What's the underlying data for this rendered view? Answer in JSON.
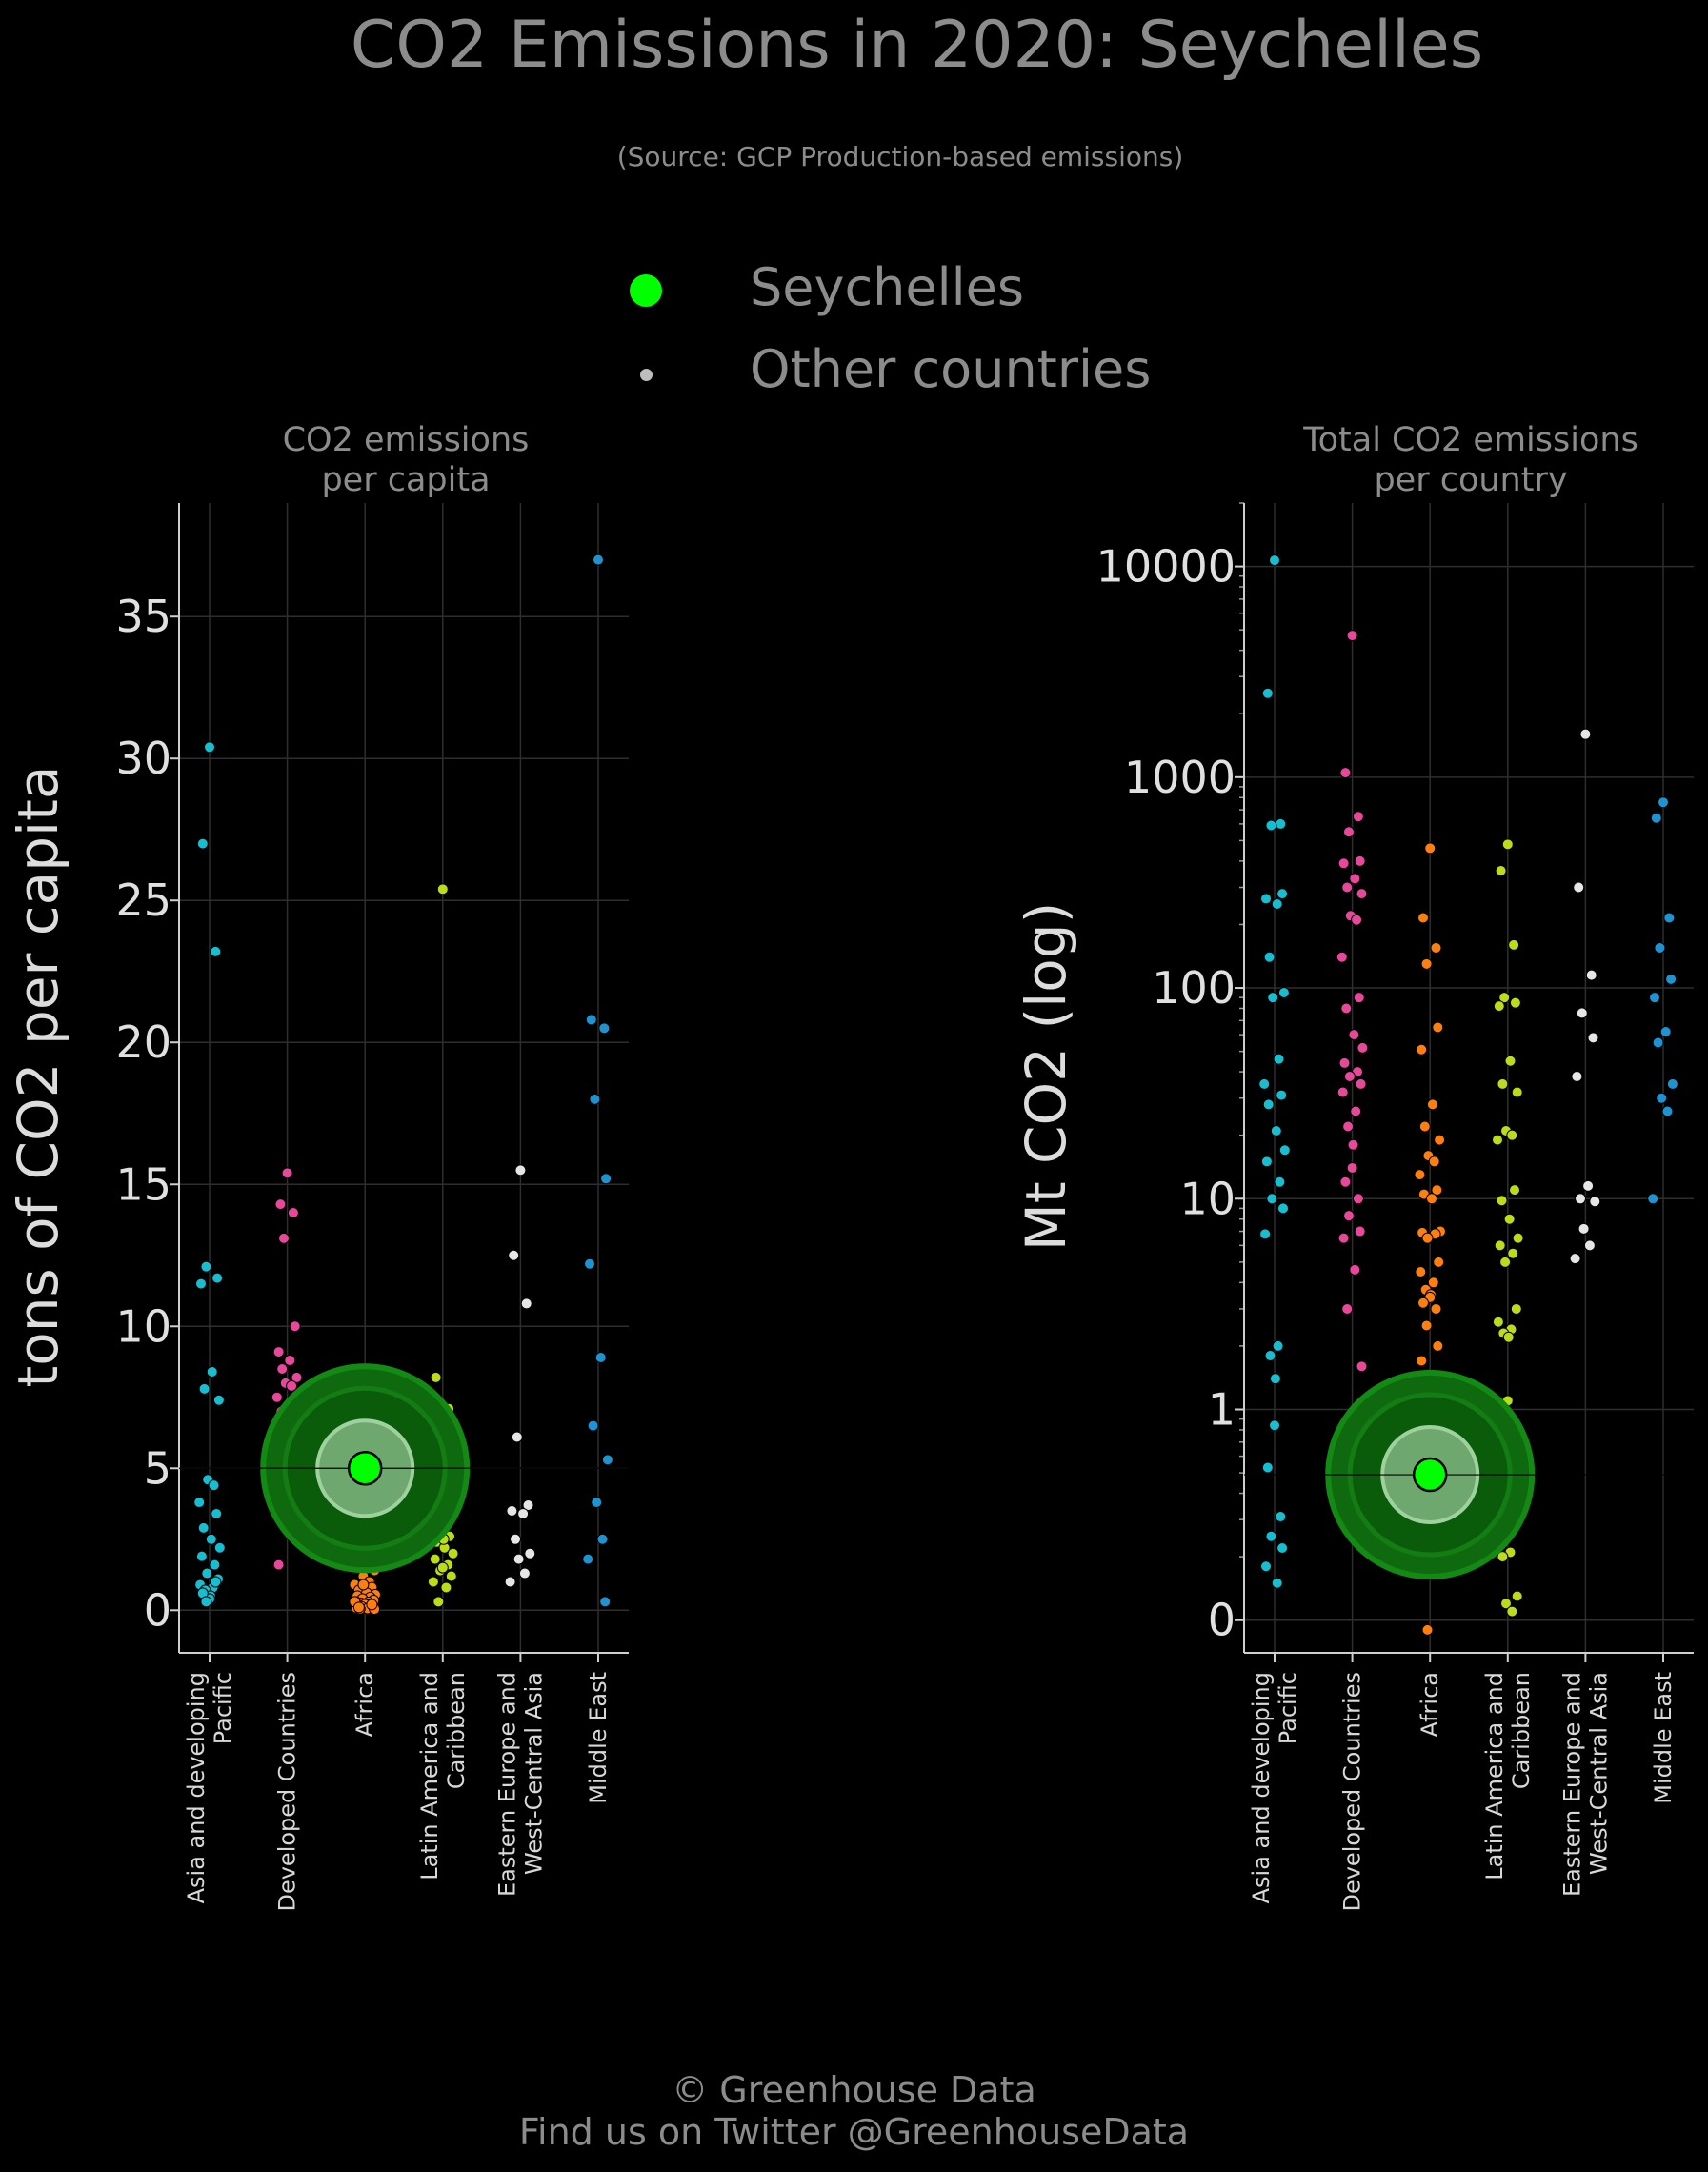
{
  "title": "CO2 Emissions in 2020: Seychelles",
  "subtitle": "(Source: GCP Production-based emissions)",
  "legend": {
    "highlight_label": "Seychelles",
    "others_label": "Other countries",
    "highlight_color": "#00ff00",
    "others_color": "#bdbdbd"
  },
  "footer": {
    "line1": "© Greenhouse Data",
    "line2": "Find us on Twitter @GreenhouseData"
  },
  "chart_data": [
    {
      "type": "scatter",
      "title_lines": [
        "CO2 emissions",
        "per capita"
      ],
      "ylabel": "tons of CO2 per capita",
      "scale": "linear",
      "ylim": [
        -1.5,
        39
      ],
      "yticks": [
        0,
        5,
        10,
        15,
        20,
        25,
        30,
        35
      ],
      "ytick_labels": [
        "0",
        "5",
        "10",
        "15",
        "20",
        "25",
        "30",
        "35"
      ],
      "grid": true,
      "categories": [
        {
          "lines": [
            "Asia and developing",
            "Pacific"
          ]
        },
        {
          "lines": [
            "Developed Countries"
          ]
        },
        {
          "lines": [
            "Africa"
          ]
        },
        {
          "lines": [
            "Latin America and",
            "Caribbean"
          ]
        },
        {
          "lines": [
            "Eastern Europe and",
            "West-Central Asia"
          ]
        },
        {
          "lines": [
            "Middle East"
          ]
        }
      ],
      "series": [
        {
          "color": "#17becf",
          "values": [
            30.4,
            27.0,
            23.2,
            12.1,
            11.7,
            11.5,
            8.4,
            7.8,
            7.4,
            4.6,
            4.4,
            3.8,
            3.4,
            2.9,
            2.5,
            2.2,
            1.9,
            1.6,
            1.3,
            1.1,
            0.9,
            0.8,
            0.7,
            0.5,
            0.4,
            0.6,
            1.0,
            0.3
          ]
        },
        {
          "color": "#e7489a",
          "values": [
            15.4,
            14.3,
            14.0,
            13.1,
            10.0,
            9.1,
            8.8,
            8.5,
            8.2,
            8.0,
            7.9,
            7.5,
            7.2,
            7.0,
            6.8,
            6.5,
            6.2,
            6.0,
            5.8,
            5.5,
            5.3,
            5.1,
            4.9,
            4.7,
            4.4,
            4.2,
            4.0,
            3.8,
            3.6,
            1.6
          ]
        },
        {
          "color": "#ff7f0e",
          "values": [
            7.6,
            7.4,
            3.5,
            3.1,
            2.7,
            2.3,
            2.0,
            1.7,
            1.4,
            1.2,
            1.0,
            0.9,
            0.8,
            0.7,
            0.6,
            0.55,
            0.5,
            0.45,
            0.4,
            0.35,
            0.3,
            0.28,
            0.25,
            0.22,
            0.2,
            0.18,
            0.15,
            0.12,
            0.1,
            0.08,
            0.06,
            0.05,
            0.04,
            0.9,
            1.5,
            0.3,
            0.2,
            0.1
          ]
        },
        {
          "color": "#bcdc1a",
          "values": [
            25.4,
            8.2,
            7.1,
            6.2,
            5.2,
            4.6,
            4.3,
            3.9,
            3.6,
            3.3,
            3.0,
            2.8,
            2.6,
            2.4,
            2.2,
            2.0,
            1.8,
            1.6,
            1.4,
            1.2,
            1.0,
            0.8,
            0.3,
            2.5,
            1.5
          ]
        },
        {
          "color": "#e6e6e6",
          "values": [
            15.5,
            12.5,
            10.8,
            6.1,
            3.7,
            3.5,
            3.4,
            2.5,
            2.0,
            1.8,
            1.3,
            1.0
          ]
        },
        {
          "color": "#1f93d0",
          "values": [
            37.0,
            20.8,
            20.5,
            18.0,
            15.2,
            12.2,
            8.9,
            6.5,
            5.3,
            3.8,
            2.5,
            1.8,
            0.3
          ]
        }
      ],
      "highlight": {
        "category_index": 2,
        "value": 5.0
      }
    },
    {
      "type": "scatter",
      "title_lines": [
        "Total CO2 emissions",
        "per country"
      ],
      "ylabel": "Mt CO2 (log)",
      "scale": "log",
      "ylim": [
        0.07,
        20000
      ],
      "yticks": [
        0.1,
        1,
        10,
        100,
        1000,
        10000
      ],
      "ytick_labels": [
        "0",
        "1",
        "10",
        "100",
        "1000",
        "10000"
      ],
      "grid": true,
      "categories": [
        {
          "lines": [
            "Asia and developing",
            "Pacific"
          ]
        },
        {
          "lines": [
            "Developed Countries"
          ]
        },
        {
          "lines": [
            "Africa"
          ]
        },
        {
          "lines": [
            "Latin America and",
            "Caribbean"
          ]
        },
        {
          "lines": [
            "Eastern Europe and",
            "West-Central Asia"
          ]
        },
        {
          "lines": [
            "Middle East"
          ]
        }
      ],
      "series": [
        {
          "color": "#17becf",
          "values": [
            10700,
            2500,
            600,
            590,
            280,
            265,
            250,
            140,
            95,
            90,
            46,
            35,
            31,
            28,
            21,
            17,
            15,
            12,
            10,
            9,
            6.8,
            2.0,
            1.8,
            1.4,
            0.84,
            0.53,
            0.31,
            0.25,
            0.22,
            0.18,
            0.15
          ]
        },
        {
          "color": "#e7489a",
          "values": [
            4700,
            1050,
            650,
            550,
            400,
            390,
            330,
            300,
            280,
            220,
            210,
            140,
            90,
            80,
            60,
            52,
            44,
            40,
            38,
            35,
            32,
            26,
            22,
            18,
            14,
            12,
            10,
            8.3,
            7.0,
            6.5,
            4.6,
            3.0,
            1.6,
            0.68,
            0.62,
            0.52
          ]
        },
        {
          "color": "#ff7f0e",
          "values": [
            460,
            215,
            155,
            130,
            65,
            51,
            28,
            22,
            19,
            16,
            15,
            13,
            11,
            10.5,
            10,
            7,
            6.9,
            6.8,
            6.5,
            5,
            4.5,
            4,
            3.7,
            3.5,
            3.4,
            3.2,
            3,
            2.5,
            2,
            1.7,
            1.4,
            1.2,
            1.0,
            0.95,
            0.9,
            0.6,
            0.45,
            0.38,
            0.35,
            0.3,
            0.26,
            0.19,
            0.09
          ]
        },
        {
          "color": "#bcdc1a",
          "values": [
            480,
            360,
            160,
            90,
            85,
            82,
            45,
            35,
            32,
            21,
            20,
            19,
            11,
            9.8,
            8,
            6.5,
            6,
            5.5,
            5,
            3,
            2.6,
            2.4,
            2.3,
            2.2,
            1.1,
            0.75,
            0.72,
            0.5,
            0.44,
            0.3,
            0.21,
            0.2,
            0.13,
            0.12,
            0.11
          ]
        },
        {
          "color": "#e6e6e6",
          "values": [
            1600,
            300,
            115,
            76,
            58,
            38,
            11.5,
            10,
            9.7,
            7.2,
            6.0,
            5.2
          ]
        },
        {
          "color": "#1f93d0",
          "values": [
            760,
            640,
            215,
            155,
            110,
            90,
            62,
            55,
            35,
            30,
            26,
            10
          ]
        }
      ],
      "highlight": {
        "category_index": 2,
        "value": 0.49
      }
    }
  ]
}
